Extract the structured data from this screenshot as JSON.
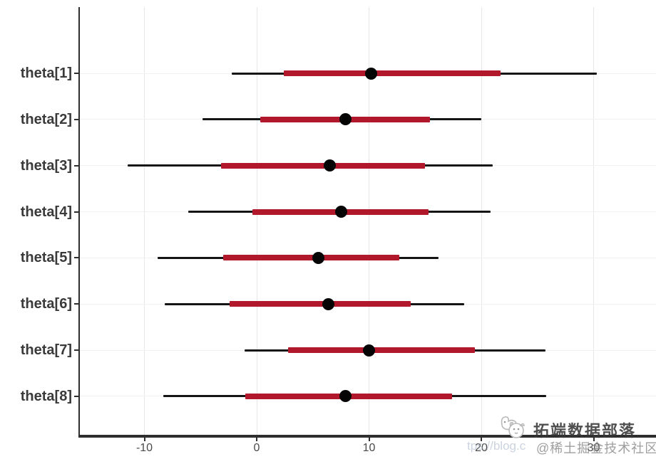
{
  "colors": {
    "inner_interval": "#b2182b",
    "outer_interval": "#141414",
    "point": "#050505",
    "grid_vertical": "#e7e7e7",
    "grid_horizontal": "#f1f1f1",
    "axis": "#2e2e2e",
    "y_label": "#3a3a3a",
    "x_tick_label": "#4a4a4a"
  },
  "watermark": {
    "brand": "拓端数据部落",
    "url_fragment": "tps://blog.c",
    "community": "@稀土掘金技术社区",
    "logo": "tecdat-doodle-logo"
  },
  "chart_data": {
    "type": "interval",
    "subtype": "forest-plot (MCMC credible intervals, horizontal)",
    "title": "",
    "xlabel": "",
    "ylabel": "",
    "grid": true,
    "legend": "none",
    "xlim": [
      -15.7,
      35.6
    ],
    "x_ticks": [
      -10,
      0,
      10,
      20,
      30
    ],
    "x_tick_labels": [
      "-10",
      "0",
      "10",
      "20",
      "30"
    ],
    "categories": [
      "theta[1]",
      "theta[2]",
      "theta[3]",
      "theta[4]",
      "theta[5]",
      "theta[6]",
      "theta[7]",
      "theta[8]"
    ],
    "rows": [
      {
        "label": "theta[1]",
        "outer": [
          -2.2,
          30.3
        ],
        "inner": [
          2.4,
          21.7
        ],
        "point": 10.2
      },
      {
        "label": "theta[2]",
        "outer": [
          -4.8,
          20.0
        ],
        "inner": [
          0.3,
          15.4
        ],
        "point": 7.9
      },
      {
        "label": "theta[3]",
        "outer": [
          -11.5,
          21.0
        ],
        "inner": [
          -3.2,
          15.0
        ],
        "point": 6.5
      },
      {
        "label": "theta[4]",
        "outer": [
          -6.1,
          20.8
        ],
        "inner": [
          -0.4,
          15.3
        ],
        "point": 7.5
      },
      {
        "label": "theta[5]",
        "outer": [
          -8.8,
          16.2
        ],
        "inner": [
          -3.0,
          12.7
        ],
        "point": 5.5
      },
      {
        "label": "theta[6]",
        "outer": [
          -8.2,
          18.5
        ],
        "inner": [
          -2.4,
          13.7
        ],
        "point": 6.4
      },
      {
        "label": "theta[7]",
        "outer": [
          -1.1,
          25.7
        ],
        "inner": [
          2.8,
          19.4
        ],
        "point": 10.0
      },
      {
        "label": "theta[8]",
        "outer": [
          -8.3,
          25.8
        ],
        "inner": [
          -1.0,
          17.4
        ],
        "point": 7.9
      }
    ]
  }
}
